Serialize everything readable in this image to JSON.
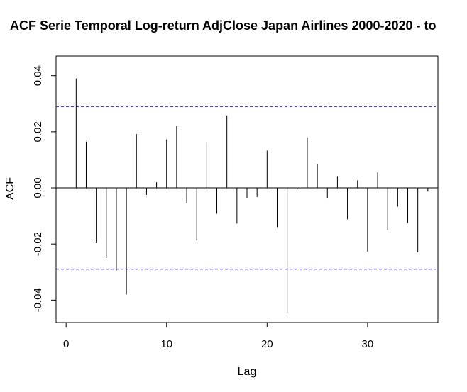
{
  "chart_data": {
    "type": "bar",
    "title": "ACF Serie Temporal Log-return AdjClose Japan Airlines 2000-2020 - to",
    "xlabel": "Lag",
    "ylabel": "ACF",
    "xlim": [
      -1,
      37
    ],
    "ylim": [
      -0.048,
      0.047
    ],
    "x_ticks": [
      0,
      10,
      20,
      30
    ],
    "x_tick_labels": [
      "0",
      "10",
      "20",
      "30"
    ],
    "y_ticks": [
      -0.04,
      -0.02,
      0.0,
      0.02,
      0.04
    ],
    "y_tick_labels": [
      "-0.04",
      "-0.02",
      "0.00",
      "0.02",
      "0.04"
    ],
    "confidence_bound": 0.029,
    "confidence_color": "#0000cc",
    "bar_color": "#000000",
    "lags": [
      1,
      2,
      3,
      4,
      5,
      6,
      7,
      8,
      9,
      10,
      11,
      12,
      13,
      14,
      15,
      16,
      17,
      18,
      19,
      20,
      21,
      22,
      23,
      24,
      25,
      26,
      27,
      28,
      29,
      30,
      31,
      32,
      33,
      34,
      35,
      36
    ],
    "values": [
      0.039,
      0.0165,
      -0.0197,
      -0.025,
      -0.0295,
      -0.038,
      0.0192,
      -0.0025,
      0.002,
      0.0173,
      0.022,
      -0.0055,
      -0.0188,
      0.0164,
      -0.0092,
      0.0258,
      -0.0127,
      -0.0038,
      -0.0033,
      0.0133,
      -0.014,
      -0.0448,
      -0.0005,
      0.018,
      0.0085,
      -0.0038,
      0.0042,
      -0.0112,
      0.0027,
      -0.0227,
      0.0055,
      -0.015,
      -0.0067,
      -0.0125,
      -0.023,
      -0.0013
    ]
  }
}
